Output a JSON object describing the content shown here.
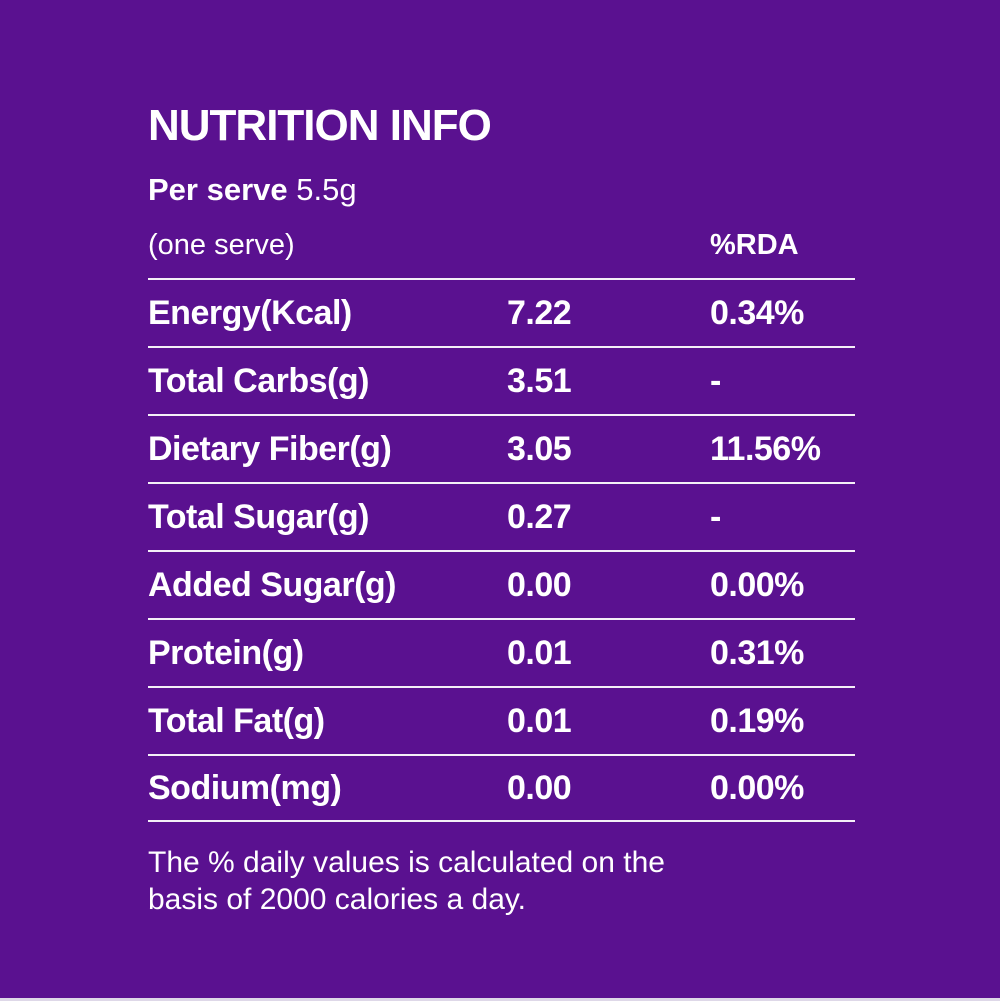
{
  "colors": {
    "background": "#5a1190",
    "text": "#ffffff",
    "divider": "#f4f0f8",
    "bottom_strip": "#ded8e8"
  },
  "header": {
    "title": "NUTRITION INFO",
    "serving_label": "Per serve",
    "serving_value": "5.5g",
    "serving_note": "(one serve)",
    "rda_column_label": "%RDA"
  },
  "table": {
    "rows": [
      {
        "label": "Energy(Kcal)",
        "value": "7.22",
        "rda": "0.34%"
      },
      {
        "label": "Total Carbs(g)",
        "value": "3.51",
        "rda": "-"
      },
      {
        "label": "Dietary Fiber(g)",
        "value": "3.05",
        "rda": "11.56%"
      },
      {
        "label": "Total Sugar(g)",
        "value": "0.27",
        "rda": "-"
      },
      {
        "label": "Added Sugar(g)",
        "value": "0.00",
        "rda": "0.00%"
      },
      {
        "label": "Protein(g)",
        "value": "0.01",
        "rda": "0.31%"
      },
      {
        "label": "Total Fat(g)",
        "value": "0.01",
        "rda": "0.19%"
      },
      {
        "label": "Sodium(mg)",
        "value": "0.00",
        "rda": "0.00%"
      }
    ]
  },
  "footer": {
    "line1": "The % daily values is calculated on the",
    "line2": "basis of 2000 calories a day."
  }
}
